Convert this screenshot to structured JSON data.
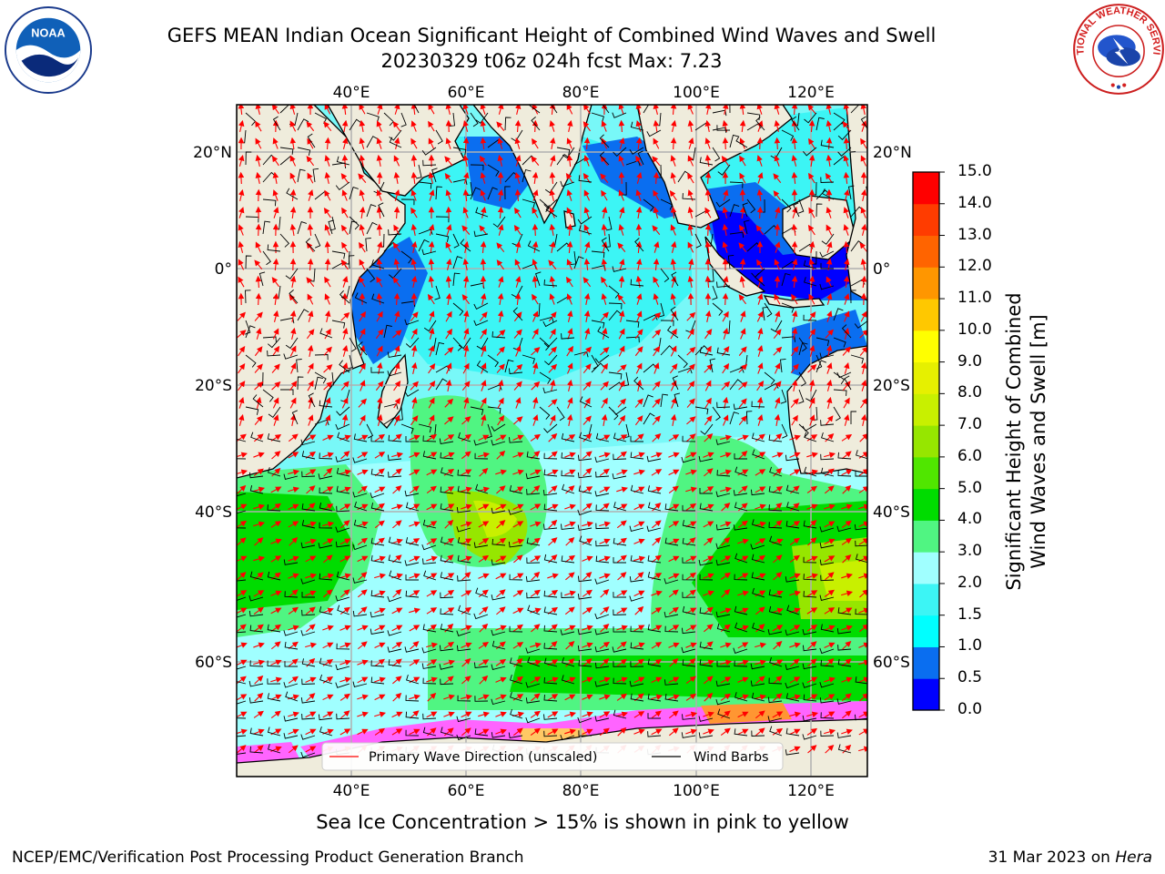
{
  "title": {
    "line1": "GEFS MEAN Indian Ocean Significant Height of Combined Wind Waves and Swell",
    "line2": "20230329 t06z 024h fcst   Max: 7.23"
  },
  "logos": {
    "left": {
      "icon": "noaa-logo",
      "text": "NOAA"
    },
    "right": {
      "icon": "nws-logo",
      "text": "NATIONAL WEATHER SERVICE"
    }
  },
  "map": {
    "lon_labels": [
      "40°E",
      "60°E",
      "80°E",
      "100°E",
      "120°E"
    ],
    "lat_labels": [
      "20°N",
      "0°",
      "20°S",
      "40°S",
      "60°S"
    ],
    "land_color": "#efecdc",
    "wave_arrow_color": "#ff0000",
    "wind_barb_color": "#000000",
    "legend": {
      "wave": "Primary Wave Direction (unscaled)",
      "wind": "Wind Barbs"
    }
  },
  "colorbar": {
    "label_line1": "Significant Height of Combined",
    "label_line2": "Wind Waves and Swell [m]",
    "ticks": [
      "0.0",
      "0.5",
      "1.0",
      "1.5",
      "2.0",
      "3.0",
      "4.0",
      "5.0",
      "6.0",
      "7.0",
      "8.0",
      "9.0",
      "10.0",
      "11.0",
      "12.0",
      "13.0",
      "14.0",
      "15.0"
    ],
    "colors": [
      "#0000ff",
      "#0a6ef0",
      "#00ffff",
      "#3cf5f5",
      "#a0ffff",
      "#50f582",
      "#00dc00",
      "#50e600",
      "#96e600",
      "#c8f000",
      "#e6f000",
      "#ffff00",
      "#ffc800",
      "#ff9600",
      "#ff6400",
      "#ff3c00",
      "#ff0000"
    ]
  },
  "footnote": "Sea Ice Concentration > 15% is shown in pink to yellow",
  "credit_left": "NCEP/EMC/Verification Post Processing Product Generation Branch",
  "credit_right": {
    "date": "31 Mar 2023 on",
    "host": "Hera"
  }
}
